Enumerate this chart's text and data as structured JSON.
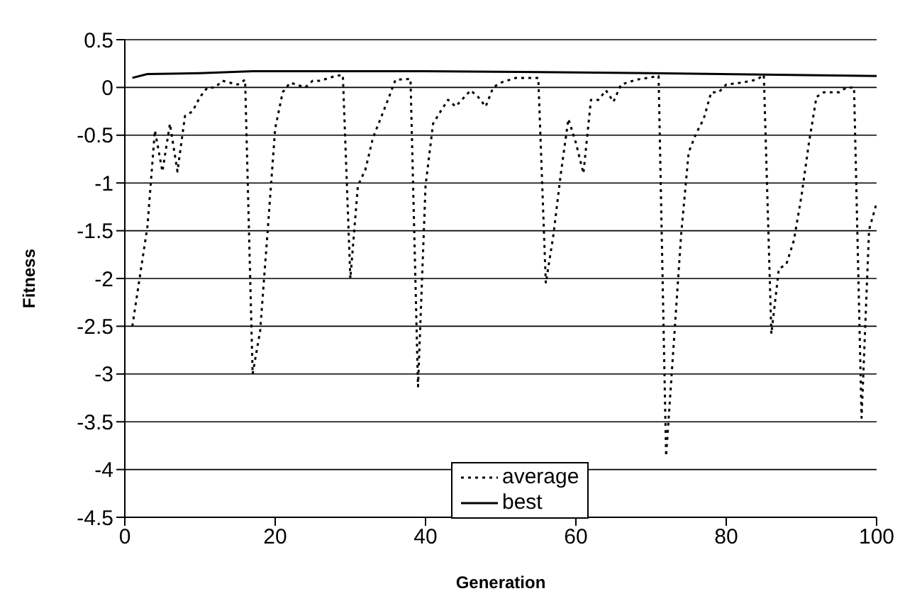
{
  "chart_data": {
    "type": "line",
    "xlabel": "Generation",
    "ylabel": "Fitness",
    "xlim": [
      0,
      100
    ],
    "xticks": [
      0,
      20,
      40,
      60,
      80,
      100
    ],
    "ylim": [
      -4.5,
      0.5
    ],
    "yticks": [
      0.5,
      0,
      -0.5,
      -1,
      -1.5,
      -2,
      -2.5,
      -3,
      -3.5,
      -4,
      -4.5
    ],
    "grid": "y",
    "legend": "bottom",
    "marker": "none",
    "series": [
      {
        "name": "average",
        "color": "#000000",
        "line_style": "dotted",
        "x": [
          1,
          3,
          4,
          5,
          6,
          7,
          8,
          9,
          10,
          11,
          12,
          13,
          15,
          16,
          17,
          18,
          19,
          20,
          21,
          22,
          24,
          25,
          26,
          28,
          29,
          30,
          31,
          32,
          33,
          35,
          36,
          38,
          39,
          40,
          41,
          42,
          43,
          44,
          46,
          47,
          48,
          49,
          50,
          52,
          55,
          56,
          57,
          58,
          59,
          60,
          61,
          62,
          63,
          64,
          65,
          66,
          68,
          71,
          72,
          73,
          74,
          75,
          76,
          77,
          78,
          79,
          80,
          82,
          84,
          85,
          86,
          87,
          88,
          89,
          90,
          91,
          92,
          93,
          95,
          96,
          97,
          98,
          99,
          100
        ],
        "values": [
          -2.5,
          -1.46,
          -0.45,
          -0.88,
          -0.38,
          -0.88,
          -0.3,
          -0.25,
          -0.1,
          0,
          0,
          0.07,
          0.03,
          0.08,
          -3.0,
          -2.55,
          -1.5,
          -0.43,
          -0.05,
          0.05,
          0,
          0.07,
          0.07,
          0.12,
          0.13,
          -2.0,
          -1.03,
          -0.86,
          -0.53,
          -0.13,
          0.08,
          0.09,
          -3.13,
          -1.03,
          -0.38,
          -0.25,
          -0.13,
          -0.2,
          -0.03,
          -0.1,
          -0.2,
          0,
          0.05,
          0.1,
          0.1,
          -2.05,
          -1.55,
          -0.9,
          -0.33,
          -0.58,
          -0.9,
          -0.13,
          -0.13,
          -0.03,
          -0.15,
          0.03,
          0.08,
          0.12,
          -3.86,
          -2.7,
          -1.54,
          -0.68,
          -0.48,
          -0.33,
          -0.05,
          -0.05,
          0.03,
          0.05,
          0.08,
          0.13,
          -2.58,
          -1.9,
          -1.85,
          -1.6,
          -1.14,
          -0.58,
          -0.1,
          -0.05,
          -0.05,
          0,
          0,
          -3.46,
          -1.49,
          -1.21
        ]
      },
      {
        "name": "best",
        "color": "#000000",
        "line_style": "solid",
        "x": [
          1,
          3,
          10,
          17,
          40,
          70,
          100
        ],
        "values": [
          0.1,
          0.14,
          0.15,
          0.17,
          0.17,
          0.15,
          0.12
        ]
      }
    ]
  }
}
